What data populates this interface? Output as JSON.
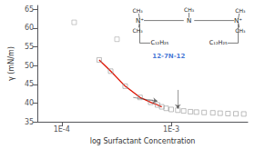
{
  "chart_data": {
    "type": "scatter",
    "xlabel": "log Surfactant Concentration",
    "ylabel": "γ (mN/m)",
    "log": "x",
    "grid": false,
    "xlim": [
      6e-05,
      0.005
    ],
    "ylim": [
      35,
      66
    ],
    "xticks": [
      {
        "value": 0.0001,
        "label": "1E-4"
      },
      {
        "value": 0.001,
        "label": "1E-3"
      }
    ],
    "yticks": [
      35,
      40,
      45,
      50,
      55,
      60,
      65
    ],
    "background_color": "#ffffff",
    "series": [
      {
        "type": "scatter",
        "marker": "square_open",
        "color": "#aaaaaa",
        "x": [
          0.00013,
          0.00032
        ],
        "values": [
          61.5,
          57.0
        ]
      },
      {
        "type": "scatter",
        "marker": "square_open",
        "color": "#999999",
        "x": [
          0.00022,
          0.00028,
          0.00038,
          0.00052,
          0.00065,
          0.00075,
          0.00082,
          0.0009,
          0.001,
          0.00115,
          0.0013,
          0.0015,
          0.0017,
          0.002,
          0.0024,
          0.0028,
          0.0033,
          0.0039,
          0.0046
        ],
        "values": [
          51.5,
          48.5,
          44.5,
          41.5,
          40.2,
          39.5,
          39.0,
          38.6,
          38.3,
          38.1,
          37.9,
          37.7,
          37.6,
          37.5,
          37.4,
          37.3,
          37.2,
          37.15,
          37.1
        ]
      },
      {
        "type": "line",
        "line_style": "solid",
        "color": "#dd1100",
        "x": [
          0.00022,
          0.00028,
          0.00038,
          0.00052,
          0.00065,
          0.00075,
          0.00082
        ],
        "values": [
          51.5,
          48.5,
          44.5,
          41.5,
          40.2,
          39.5,
          39.0
        ]
      }
    ],
    "arrows": [
      {
        "from": [
          0.00045,
          41.5
        ],
        "to": [
          0.00075,
          40.5
        ]
      },
      {
        "from": [
          0.00115,
          43.5
        ],
        "to": [
          0.00115,
          38.5
        ]
      }
    ],
    "annotations": [
      {
        "text": "12-7N-12",
        "x": 0.00095,
        "y": 52.5,
        "color": "#1155cc"
      },
      {
        "text": "CH₃"
      },
      {
        "text": "CH₃"
      },
      {
        "text": "N⁺"
      },
      {
        "text": "C₁₂H₂₅"
      },
      {
        "text": "N"
      },
      {
        "text": "CH₃"
      },
      {
        "text": "N⁺"
      },
      {
        "text": "CH₃"
      },
      {
        "text": "CH₃"
      },
      {
        "text": "C₁₂H₂₅"
      }
    ]
  }
}
